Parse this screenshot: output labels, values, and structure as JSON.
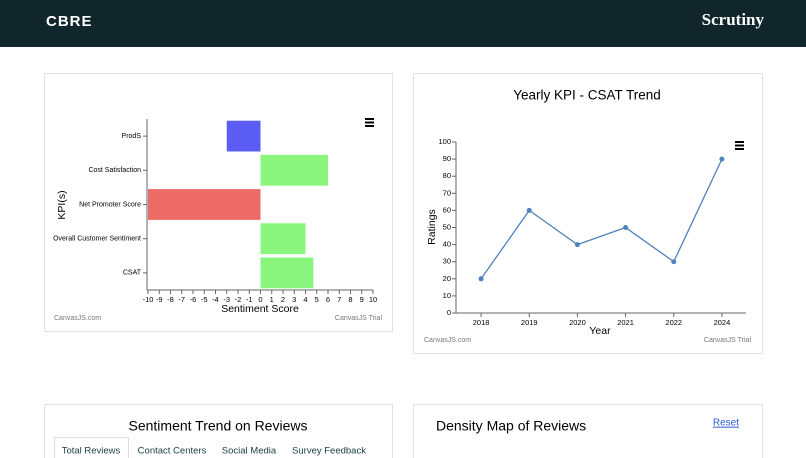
{
  "header": {
    "logo": "CBRE",
    "brand": "Scrutiny"
  },
  "chart_data": [
    {
      "type": "hbar",
      "categories": [
        "ProdS",
        "Cost Satisfaction",
        "Net Promoter Score",
        "Overall Customer Sentiment",
        "CSAT"
      ],
      "values": [
        -3,
        6,
        -10,
        4,
        4.7
      ],
      "colors": [
        "#5b5cf4",
        "#8af57c",
        "#ec6b66",
        "#8af57c",
        "#8af57c"
      ],
      "xlim": [
        -10,
        10
      ],
      "xticks": [
        -10,
        -9,
        -8,
        -7,
        -6,
        -5,
        -4,
        -3,
        -2,
        -1,
        0,
        1,
        2,
        3,
        4,
        5,
        6,
        7,
        8,
        9,
        10
      ],
      "x_label": "Sentiment Score",
      "y_label": "KPI(s)",
      "credit_left": "CanvasJS.com",
      "credit_right": "CanvasJS Trial"
    },
    {
      "type": "line",
      "title": "Yearly KPI - CSAT Trend",
      "categories": [
        "2018",
        "2019",
        "2020",
        "2021",
        "2022",
        "2024"
      ],
      "values": [
        20,
        60,
        40,
        50,
        30,
        90
      ],
      "color": "#4f81bc",
      "ylim": [
        0,
        100
      ],
      "yticks": [
        0,
        10,
        20,
        30,
        40,
        50,
        60,
        70,
        80,
        90,
        100
      ],
      "x_label": "Year",
      "y_label": "Ratings",
      "credit_left": "CanvasJS.com",
      "credit_right": "CanvasJS Trial"
    }
  ],
  "sentiment_panel": {
    "title": "Sentiment Trend on Reviews",
    "tabs": [
      "Total Reviews",
      "Contact Centers",
      "Social Media",
      "Survey Feedback"
    ]
  },
  "density_panel": {
    "title": "Density Map of Reviews",
    "reset": "Reset"
  }
}
